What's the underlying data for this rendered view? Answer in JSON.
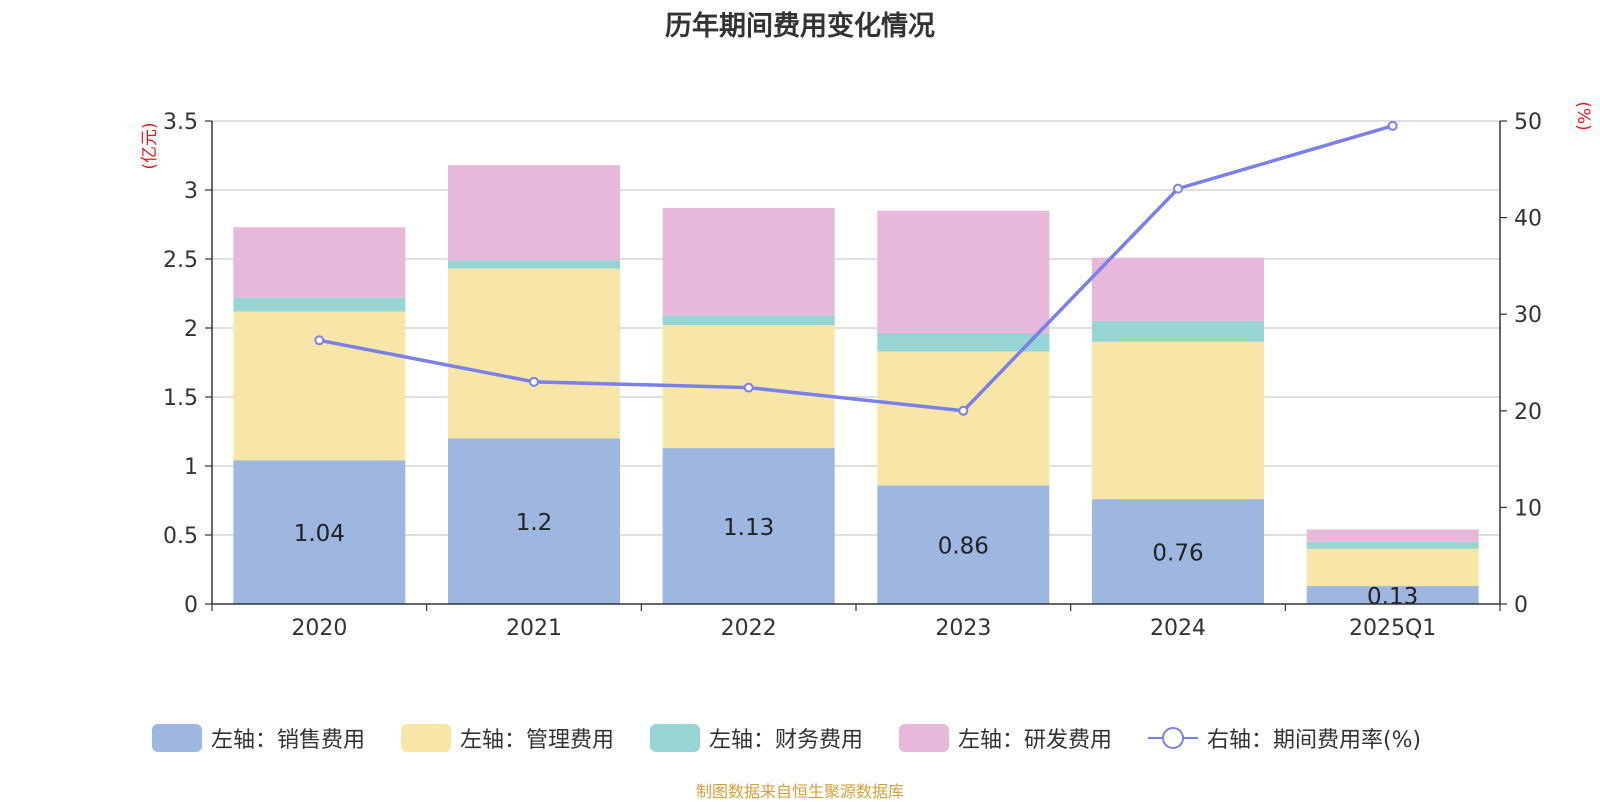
{
  "chart_data": {
    "type": "bar",
    "title": "历年期间费用变化情况",
    "categories": [
      "2020",
      "2021",
      "2022",
      "2023",
      "2024",
      "2025Q1"
    ],
    "stacked": true,
    "left_axis": {
      "unit_label": "(亿元)",
      "ylim": [
        0,
        3.5
      ],
      "ticks": [
        "0",
        "0.5",
        "1",
        "1.5",
        "2",
        "2.5",
        "3",
        "3.5"
      ]
    },
    "right_axis": {
      "unit_label": "(%)",
      "ylim": [
        0,
        50
      ],
      "ticks": [
        "0",
        "10",
        "20",
        "30",
        "40",
        "50"
      ]
    },
    "series": [
      {
        "name": "左轴：销售费用",
        "kind": "bar",
        "axis": "left",
        "color": "#9db7e0",
        "values": [
          1.04,
          1.2,
          1.13,
          0.86,
          0.76,
          0.13
        ],
        "data_labels": [
          "1.04",
          "1.2",
          "1.13",
          "0.86",
          "0.76",
          "0.13"
        ]
      },
      {
        "name": "左轴：管理费用",
        "kind": "bar",
        "axis": "left",
        "color": "#f7e6a8",
        "values": [
          1.08,
          1.23,
          0.89,
          0.97,
          1.14,
          0.27
        ]
      },
      {
        "name": "左轴：财务费用",
        "kind": "bar",
        "axis": "left",
        "color": "#97d4d4",
        "values": [
          0.1,
          0.06,
          0.07,
          0.13,
          0.15,
          0.05
        ]
      },
      {
        "name": "左轴：研发费用",
        "kind": "bar",
        "axis": "left",
        "color": "#e7b8d9",
        "values": [
          0.51,
          0.69,
          0.78,
          0.89,
          0.46,
          0.09
        ]
      },
      {
        "name": "右轴：期间费用率(%)",
        "kind": "line",
        "axis": "right",
        "color": "#7b7fe8",
        "values": [
          27.3,
          23.0,
          22.4,
          20.0,
          43.0,
          49.5
        ]
      }
    ],
    "grid": true,
    "legend_position": "bottom"
  },
  "footer": {
    "source": "制图数据来自恒生聚源数据库"
  }
}
